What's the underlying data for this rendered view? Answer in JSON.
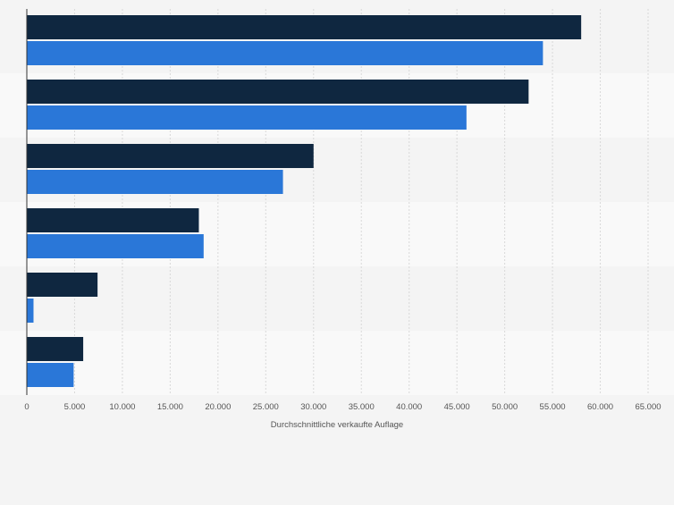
{
  "chart_data": {
    "type": "bar",
    "orientation": "horizontal",
    "categories": [
      "",
      "",
      "",
      "",
      "",
      ""
    ],
    "series": [
      {
        "name": "",
        "color": "#0f2740",
        "values": [
          58000,
          52500,
          30000,
          18000,
          7400,
          5900
        ]
      },
      {
        "name": "",
        "color": "#2a77d8",
        "values": [
          54000,
          46000,
          26800,
          18500,
          700,
          4900
        ]
      }
    ],
    "xlabel": "Durchschnittliche verkaufte Auflage",
    "ylabel": "",
    "xlim": [
      0,
      65000
    ],
    "xticks": [
      0,
      5000,
      10000,
      15000,
      20000,
      25000,
      30000,
      35000,
      40000,
      45000,
      50000,
      55000,
      60000,
      65000
    ],
    "xtick_labels": [
      "0",
      "5.000",
      "10.000",
      "15.000",
      "20.000",
      "25.000",
      "30.000",
      "35.000",
      "40.000",
      "45.000",
      "50.000",
      "55.000",
      "60.000",
      "65.000"
    ],
    "grid": true,
    "legend": "none"
  }
}
